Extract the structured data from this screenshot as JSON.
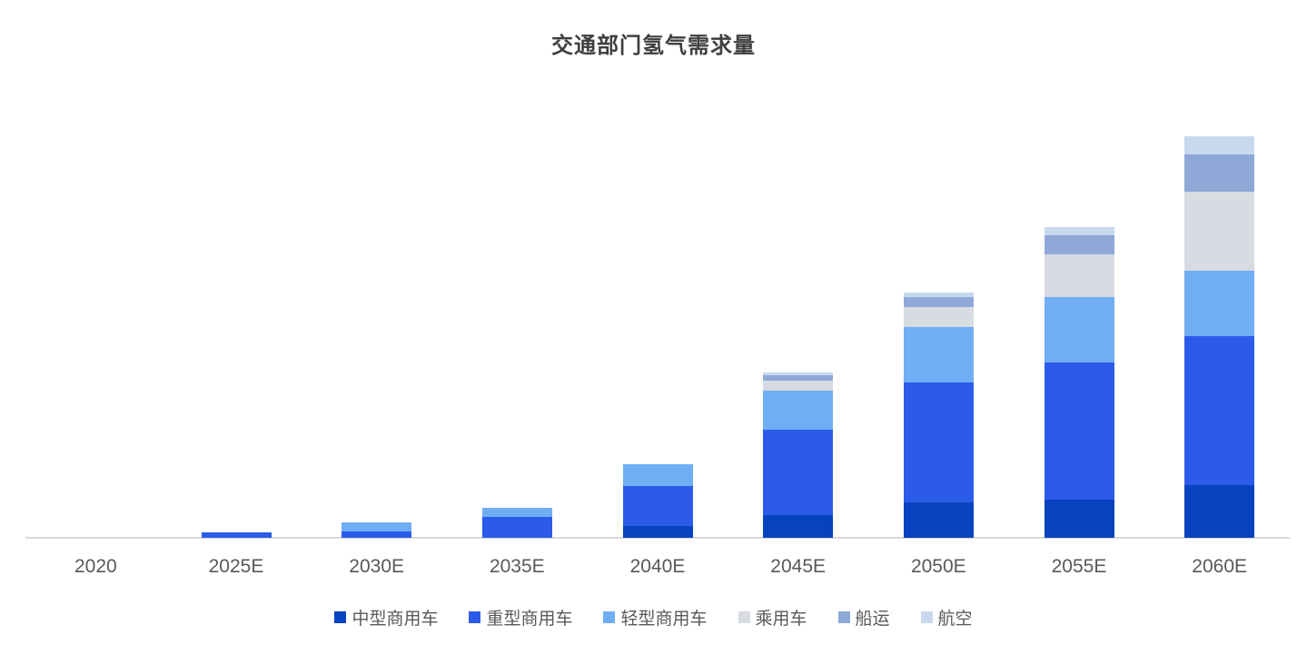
{
  "chart_data": {
    "type": "bar",
    "stacked": true,
    "title": "交通部门氢气需求量",
    "xlabel": "",
    "ylabel": "",
    "y_axis_visible": false,
    "value_unit": "relative height (y axis unlabeled in source image)",
    "grid": false,
    "legend_position": "bottom",
    "categories": [
      "2020",
      "2025E",
      "2030E",
      "2035E",
      "2040E",
      "2045E",
      "2050E",
      "2055E",
      "2060E"
    ],
    "series": [
      {
        "name": "中型商用车",
        "color": "#0743BE",
        "values": [
          0,
          0,
          0,
          0,
          13,
          25,
          39,
          42,
          58
        ]
      },
      {
        "name": "重型商用车",
        "color": "#2D5BE9",
        "values": [
          0,
          6,
          7,
          23,
          44,
          94,
          132,
          151,
          164
        ]
      },
      {
        "name": "轻型商用车",
        "color": "#70AEF4",
        "values": [
          0,
          0,
          10,
          10,
          24,
          43,
          61,
          72,
          72
        ]
      },
      {
        "name": "乘用车",
        "color": "#D7DBE2",
        "values": [
          0,
          0,
          0,
          0,
          0,
          11,
          22,
          47,
          87
        ]
      },
      {
        "name": "船运",
        "color": "#8EA9D8",
        "values": [
          0,
          0,
          0,
          0,
          0,
          6,
          11,
          21,
          41
        ]
      },
      {
        "name": "航空",
        "color": "#C8D9EE",
        "values": [
          0,
          0,
          0,
          0,
          0,
          3,
          5,
          9,
          20
        ]
      }
    ],
    "ylim": [
      0,
      460
    ],
    "axis_line_color": "#d9d9d9",
    "title_color": "#3f3f3f",
    "label_color": "#595959"
  }
}
